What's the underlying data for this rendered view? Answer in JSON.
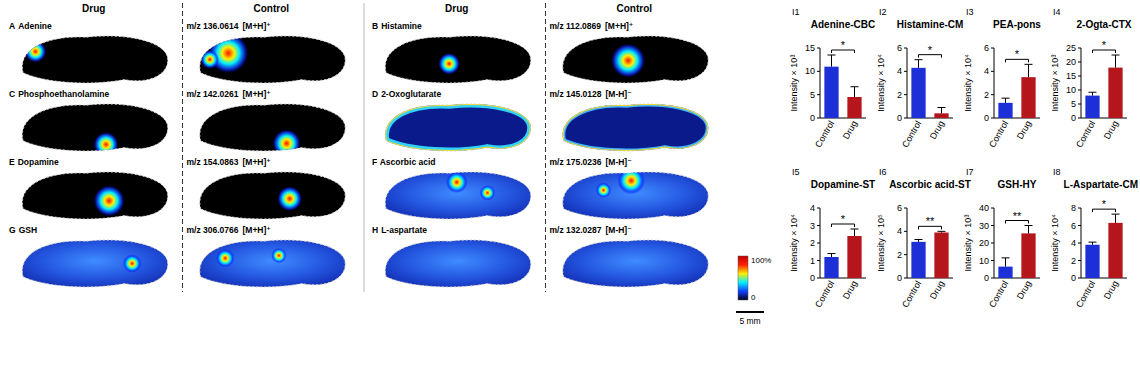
{
  "imaging": {
    "headers": [
      "Drug",
      "Control",
      "Drug",
      "Control"
    ],
    "panels": [
      {
        "letter": "A",
        "name": "Adenine",
        "mz": "m/z 136.0614",
        "ion": "[M+H]⁺"
      },
      {
        "letter": "B",
        "name": "Histamine",
        "mz": "m/z 112.0869",
        "ion": "[M+H]⁺"
      },
      {
        "letter": "C",
        "name": "Phosphoethanolamine",
        "mz": "m/z 142.0261",
        "ion": "[M+H]⁺"
      },
      {
        "letter": "D",
        "name": "2-Oxoglutarate",
        "mz": "m/z 145.0128",
        "ion": "[M-H]⁻"
      },
      {
        "letter": "E",
        "name": "Dopamine",
        "mz": "m/z 154.0863",
        "ion": "[M+H]⁺"
      },
      {
        "letter": "F",
        "name": "Ascorbic acid",
        "mz": "m/z 175.0236",
        "ion": "[M-H]⁻"
      },
      {
        "letter": "G",
        "name": "GSH",
        "mz": "m/z 306.0766",
        "ion": "[M+H]⁺"
      },
      {
        "letter": "H",
        "name": "L-aspartate",
        "mz": "m/z 132.0287",
        "ion": "[M-H]⁻"
      }
    ],
    "colorbar": {
      "max_label": "100%",
      "min_label": "0"
    },
    "scale_bar": "5 mm"
  },
  "chart_data": [
    {
      "type": "bar",
      "panel_label": "I1",
      "title": "Adenine-CBC",
      "y_label": "Intensity × 10³",
      "categories": [
        "Control",
        "Drug"
      ],
      "values": [
        11,
        4.5
      ],
      "errors": [
        2.5,
        2.2
      ],
      "colors": [
        "#1d2fd6",
        "#b5161c"
      ],
      "ylim": [
        0,
        15
      ],
      "yticks": [
        0,
        5,
        10,
        15
      ],
      "significance": "*"
    },
    {
      "type": "bar",
      "panel_label": "I2",
      "title": "Histamine-CM",
      "y_label": "Intensity × 10⁴",
      "categories": [
        "Control",
        "Drug"
      ],
      "values": [
        4.3,
        0.4
      ],
      "errors": [
        0.7,
        0.5
      ],
      "colors": [
        "#1d2fd6",
        "#b5161c"
      ],
      "ylim": [
        0,
        6
      ],
      "yticks": [
        0,
        2,
        4,
        6
      ],
      "significance": "*"
    },
    {
      "type": "bar",
      "panel_label": "I3",
      "title": "PEA-pons",
      "y_label": "Intensity × 10⁴",
      "categories": [
        "Control",
        "Drug"
      ],
      "values": [
        1.3,
        3.5
      ],
      "errors": [
        0.4,
        1.1
      ],
      "colors": [
        "#1d2fd6",
        "#b5161c"
      ],
      "ylim": [
        0,
        6
      ],
      "yticks": [
        0,
        2,
        4,
        6
      ],
      "significance": "*"
    },
    {
      "type": "bar",
      "panel_label": "I4",
      "title": "2-Ogta-CTX",
      "y_label": "Intensity × 10³",
      "categories": [
        "Control",
        "Drug"
      ],
      "values": [
        8,
        18
      ],
      "errors": [
        1.2,
        4.5
      ],
      "colors": [
        "#1d2fd6",
        "#b5161c"
      ],
      "ylim": [
        0,
        25
      ],
      "yticks": [
        0,
        5,
        10,
        15,
        20,
        25
      ],
      "significance": "*"
    },
    {
      "type": "bar",
      "panel_label": "I5",
      "title": "Dopamine-ST",
      "y_label": "Intensity × 10⁴",
      "categories": [
        "Control",
        "Drug"
      ],
      "values": [
        1.2,
        2.4
      ],
      "errors": [
        0.2,
        0.4
      ],
      "colors": [
        "#1d2fd6",
        "#b5161c"
      ],
      "ylim": [
        0,
        4
      ],
      "yticks": [
        0,
        1,
        2,
        3,
        4
      ],
      "significance": "*"
    },
    {
      "type": "bar",
      "panel_label": "I6",
      "title": "Ascorbic acid-ST",
      "y_label": "Intensity × 10⁵",
      "categories": [
        "Control",
        "Drug"
      ],
      "values": [
        3.1,
        3.9
      ],
      "errors": [
        0.2,
        0.1
      ],
      "colors": [
        "#1d2fd6",
        "#b5161c"
      ],
      "ylim": [
        0,
        6
      ],
      "yticks": [
        0,
        2,
        4,
        6
      ],
      "significance": "**"
    },
    {
      "type": "bar",
      "panel_label": "I7",
      "title": "GSH-HY",
      "y_label": "Intensity × 10³",
      "categories": [
        "Control",
        "Drug"
      ],
      "values": [
        6.5,
        25.5
      ],
      "errors": [
        5,
        4.5
      ],
      "colors": [
        "#1d2fd6",
        "#b5161c"
      ],
      "ylim": [
        0,
        40
      ],
      "yticks": [
        0,
        10,
        20,
        30,
        40
      ],
      "significance": "**"
    },
    {
      "type": "bar",
      "panel_label": "I8",
      "title": "L-Aspartate-CM",
      "y_label": "Intensity × 10⁴",
      "categories": [
        "Control",
        "Drug"
      ],
      "values": [
        3.8,
        6.3
      ],
      "errors": [
        0.3,
        1
      ],
      "colors": [
        "#1d2fd6",
        "#b5161c"
      ],
      "ylim": [
        0,
        8
      ],
      "yticks": [
        0,
        2,
        4,
        6,
        8
      ],
      "significance": "*"
    }
  ]
}
